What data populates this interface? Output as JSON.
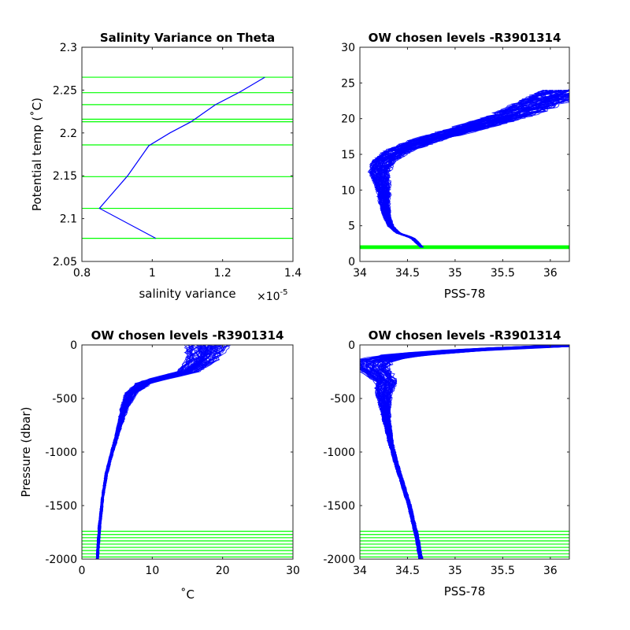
{
  "colors": {
    "profile": "#0000ff",
    "levels": "#00ff00",
    "axis": "#262626"
  },
  "chart_data": [
    {
      "id": "p1",
      "type": "line",
      "title": "Salinity Variance on Theta",
      "xlabel": "salinity variance",
      "x_exponent": "×10",
      "x_exponent_power": "-5",
      "ylabel": "Potential temp (˚C)",
      "xlim": [
        0.8,
        1.4
      ],
      "ylim": [
        2.05,
        2.3
      ],
      "xticks": [
        "0.8",
        "1",
        "1.2",
        "1.4"
      ],
      "yticks": [
        "2.05",
        "2.1",
        "2.15",
        "2.2",
        "2.25",
        "2.3"
      ],
      "series": [
        {
          "x": [
            1.32,
            1.25,
            1.18,
            1.11,
            1.05,
            0.99,
            0.93,
            0.85,
            1.01
          ],
          "y": [
            2.265,
            2.248,
            2.233,
            2.213,
            2.2,
            2.185,
            2.15,
            2.112,
            2.077
          ]
        }
      ],
      "levels": [
        2.265,
        2.247,
        2.233,
        2.216,
        2.213,
        2.186,
        2.149,
        2.112,
        2.077
      ]
    },
    {
      "id": "p2",
      "type": "line",
      "title": "OW chosen levels -R3901314",
      "xlabel": "PSS-78",
      "ylabel": "",
      "xlim": [
        34,
        36.2
      ],
      "ylim": [
        0,
        30
      ],
      "xticks": [
        "34",
        "34.5",
        "35",
        "35.5",
        "36"
      ],
      "yticks": [
        "0",
        "5",
        "10",
        "15",
        "20",
        "25",
        "30"
      ],
      "mean_profile": {
        "x": [
          34.65,
          34.55,
          34.4,
          34.32,
          34.28,
          34.26,
          34.25,
          34.23,
          34.2,
          34.25,
          34.4,
          34.7,
          35.1,
          35.6,
          36.2
        ],
        "y": [
          2.0,
          3.3,
          4.0,
          5.0,
          6.5,
          8.0,
          9.5,
          11.0,
          12.5,
          14.0,
          15.5,
          17.0,
          18.5,
          20.5,
          24.0
        ]
      },
      "levels": [
        1.8,
        1.9,
        2.0,
        2.1,
        2.2
      ]
    },
    {
      "id": "p3",
      "type": "line",
      "title": "OW chosen levels -R3901314",
      "xlabel": "˚C",
      "ylabel": "Pressure (dbar)",
      "xlim": [
        0,
        30
      ],
      "ylim": [
        -2000,
        0
      ],
      "xticks": [
        "0",
        "10",
        "20",
        "30"
      ],
      "yticks": [
        "-2000",
        "-1500",
        "-1000",
        "-500",
        "0"
      ],
      "mean_profile": {
        "x": [
          2.2,
          2.5,
          3.0,
          3.5,
          4.3,
          5.2,
          6.0,
          7.0,
          9.0,
          12.0,
          15.0,
          17.0,
          18.0
        ],
        "y": [
          -2000,
          -1700,
          -1400,
          -1200,
          -1000,
          -800,
          -600,
          -450,
          -350,
          -300,
          -250,
          -150,
          -5
        ]
      },
      "levels": [
        -1740,
        -1770,
        -1800,
        -1830,
        -1860,
        -1890,
        -1920,
        -1950,
        -1980
      ]
    },
    {
      "id": "p4",
      "type": "line",
      "title": "OW chosen levels -R3901314",
      "xlabel": "PSS-78",
      "ylabel": "",
      "xlim": [
        34,
        36.2
      ],
      "ylim": [
        -2000,
        0
      ],
      "xticks": [
        "34",
        "34.5",
        "35",
        "35.5",
        "36"
      ],
      "yticks": [
        "-2000",
        "-1500",
        "-1000",
        "-500",
        "0"
      ],
      "mean_profile": {
        "x": [
          34.64,
          34.6,
          34.52,
          34.45,
          34.38,
          34.32,
          34.28,
          34.26,
          34.25,
          34.28,
          34.2,
          34.13,
          34.15,
          34.4,
          34.8,
          35.3,
          36.2
        ],
        "y": [
          -2000,
          -1800,
          -1500,
          -1300,
          -1100,
          -900,
          -700,
          -550,
          -450,
          -350,
          -270,
          -220,
          -150,
          -100,
          -70,
          -40,
          -5
        ]
      },
      "levels": [
        -1740,
        -1770,
        -1800,
        -1830,
        -1860,
        -1890,
        -1920,
        -1950,
        -1980
      ]
    }
  ]
}
